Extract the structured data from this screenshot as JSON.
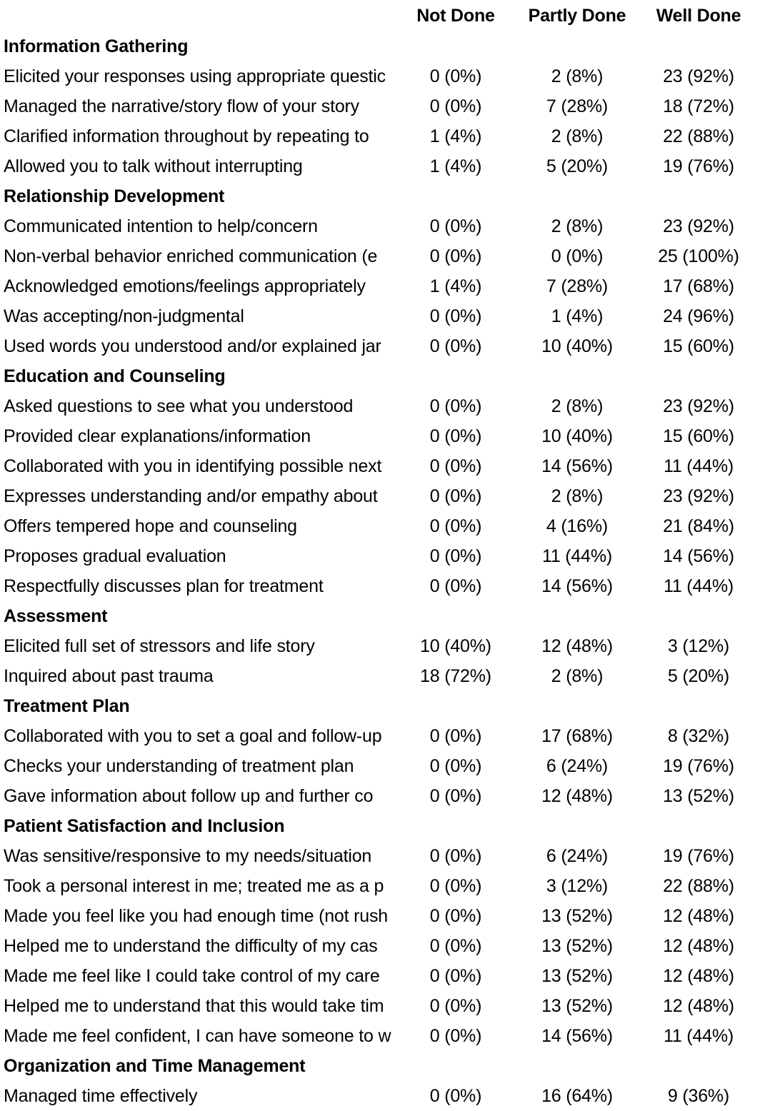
{
  "colors": {
    "text": "#000000",
    "background": "#ffffff"
  },
  "table": {
    "columns": [
      "Not Done",
      "Partly Done",
      "Well Done"
    ],
    "sections": [
      {
        "title": "Information Gathering",
        "rows": [
          {
            "label": "Elicited your responses using appropriate questic",
            "not_done": "0 (0%)",
            "partly_done": "2 (8%)",
            "well_done": "23 (92%)"
          },
          {
            "label": "Managed the narrative/story flow of your story",
            "not_done": "0 (0%)",
            "partly_done": "7 (28%)",
            "well_done": "18 (72%)"
          },
          {
            "label": "Clarified information throughout by repeating to",
            "not_done": "1 (4%)",
            "partly_done": "2 (8%)",
            "well_done": "22 (88%)"
          },
          {
            "label": "Allowed you to talk without interrupting",
            "not_done": "1 (4%)",
            "partly_done": "5 (20%)",
            "well_done": "19 (76%)"
          }
        ]
      },
      {
        "title": "Relationship Development",
        "rows": [
          {
            "label": "Communicated intention to help/concern",
            "not_done": "0 (0%)",
            "partly_done": "2 (8%)",
            "well_done": "23 (92%)"
          },
          {
            "label": "Non-verbal behavior enriched communication (e",
            "not_done": "0 (0%)",
            "partly_done": "0 (0%)",
            "well_done": "25 (100%)"
          },
          {
            "label": "Acknowledged emotions/feelings appropriately",
            "not_done": "1 (4%)",
            "partly_done": "7 (28%)",
            "well_done": "17 (68%)"
          },
          {
            "label": "Was accepting/non-judgmental",
            "not_done": "0 (0%)",
            "partly_done": "1 (4%)",
            "well_done": "24 (96%)"
          },
          {
            "label": "Used words you understood and/or explained jar",
            "not_done": "0 (0%)",
            "partly_done": "10 (40%)",
            "well_done": "15 (60%)"
          }
        ]
      },
      {
        "title": "Education and Counseling",
        "rows": [
          {
            "label": "Asked questions to see what you understood",
            "not_done": "0 (0%)",
            "partly_done": "2 (8%)",
            "well_done": "23 (92%)"
          },
          {
            "label": "Provided clear explanations/information",
            "not_done": "0 (0%)",
            "partly_done": "10 (40%)",
            "well_done": "15 (60%)"
          },
          {
            "label": "Collaborated with you in identifying possible next",
            "not_done": "0 (0%)",
            "partly_done": "14 (56%)",
            "well_done": "11 (44%)"
          },
          {
            "label": "Expresses understanding and/or empathy about",
            "not_done": "0 (0%)",
            "partly_done": "2 (8%)",
            "well_done": "23 (92%)"
          },
          {
            "label": "Offers tempered hope and counseling",
            "not_done": "0 (0%)",
            "partly_done": "4 (16%)",
            "well_done": "21 (84%)"
          },
          {
            "label": "Proposes gradual evaluation",
            "not_done": "0 (0%)",
            "partly_done": "11 (44%)",
            "well_done": "14 (56%)"
          },
          {
            "label": "Respectfully discusses plan for treatment",
            "not_done": "0 (0%)",
            "partly_done": "14 (56%)",
            "well_done": "11 (44%)"
          }
        ]
      },
      {
        "title": "Assessment",
        "rows": [
          {
            "label": "Elicited full set of stressors and life story",
            "not_done": "10 (40%)",
            "partly_done": "12 (48%)",
            "well_done": "3 (12%)"
          },
          {
            "label": "Inquired about past trauma",
            "not_done": "18 (72%)",
            "partly_done": "2 (8%)",
            "well_done": "5 (20%)"
          }
        ]
      },
      {
        "title": "Treatment Plan",
        "rows": [
          {
            "label": "Collaborated with you to set a goal and follow-up",
            "not_done": "0 (0%)",
            "partly_done": "17 (68%)",
            "well_done": "8 (32%)"
          },
          {
            "label": "Checks your understanding of treatment plan",
            "not_done": "0 (0%)",
            "partly_done": "6 (24%)",
            "well_done": "19 (76%)"
          },
          {
            "label": "Gave information about follow up and further co",
            "not_done": "0 (0%)",
            "partly_done": "12 (48%)",
            "well_done": "13 (52%)"
          }
        ]
      },
      {
        "title": "Patient Satisfaction and Inclusion",
        "rows": [
          {
            "label": "Was sensitive/responsive to my needs/situation",
            "not_done": "0 (0%)",
            "partly_done": "6 (24%)",
            "well_done": "19 (76%)"
          },
          {
            "label": "Took a personal interest in me; treated me as a p",
            "not_done": "0 (0%)",
            "partly_done": "3 (12%)",
            "well_done": "22 (88%)"
          },
          {
            "label": "Made you feel like you had enough time (not rush",
            "not_done": "0 (0%)",
            "partly_done": "13 (52%)",
            "well_done": "12 (48%)"
          },
          {
            "label": "Helped me to understand the difficulty of my cas",
            "not_done": "0 (0%)",
            "partly_done": "13 (52%)",
            "well_done": "12 (48%)"
          },
          {
            "label": "Made me feel like I could take control of my care",
            "not_done": "0 (0%)",
            "partly_done": "13 (52%)",
            "well_done": "12 (48%)"
          },
          {
            "label": "Helped me to understand that this would take tim",
            "not_done": "0 (0%)",
            "partly_done": "13 (52%)",
            "well_done": "12 (48%)"
          },
          {
            "label": "Made me feel confident, I can have someone to w",
            "not_done": "0 (0%)",
            "partly_done": "14 (56%)",
            "well_done": "11 (44%)"
          }
        ]
      },
      {
        "title": "Organization and Time Management",
        "rows": [
          {
            "label": "Managed time effectively",
            "not_done": "0 (0%)",
            "partly_done": "16 (64%)",
            "well_done": "9 (36%)"
          }
        ]
      }
    ]
  }
}
